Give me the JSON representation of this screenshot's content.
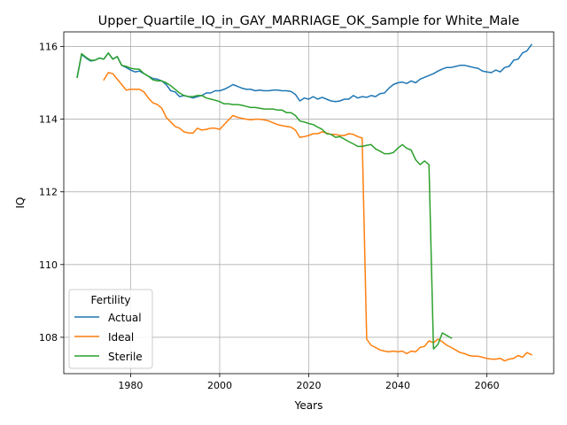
{
  "chart_data": {
    "type": "line",
    "title": "Upper_Quartile_IQ_in_GAY_MARRIAGE_OK_Sample for White_Male",
    "xlabel": "Years",
    "ylabel": "IQ",
    "xlim": [
      1965,
      2075
    ],
    "ylim": [
      107.0,
      116.4
    ],
    "xticks": [
      1980,
      2000,
      2020,
      2040,
      2060
    ],
    "yticks": [
      108,
      110,
      112,
      114,
      116
    ],
    "grid": true,
    "legend": {
      "title": "Fertility",
      "placement": "lower-left"
    },
    "series": [
      {
        "name": "Actual",
        "color": "#1f77b4",
        "points": [
          [
            1968,
            115.15
          ],
          [
            1969,
            115.78
          ],
          [
            1970,
            115.68
          ],
          [
            1971,
            115.6
          ],
          [
            1972,
            115.62
          ],
          [
            1973,
            115.68
          ],
          [
            1974,
            115.65
          ],
          [
            1975,
            115.82
          ],
          [
            1976,
            115.65
          ],
          [
            1977,
            115.72
          ],
          [
            1978,
            115.48
          ],
          [
            1979,
            115.42
          ],
          [
            1980,
            115.35
          ],
          [
            1981,
            115.3
          ],
          [
            1982,
            115.32
          ],
          [
            1983,
            115.25
          ],
          [
            1984,
            115.18
          ],
          [
            1985,
            115.12
          ],
          [
            1986,
            115.1
          ],
          [
            1987,
            115.05
          ],
          [
            1988,
            114.95
          ],
          [
            1989,
            114.78
          ],
          [
            1990,
            114.75
          ],
          [
            1991,
            114.62
          ],
          [
            1992,
            114.65
          ],
          [
            1993,
            114.62
          ],
          [
            1994,
            114.58
          ],
          [
            1995,
            114.62
          ],
          [
            1996,
            114.65
          ],
          [
            1997,
            114.72
          ],
          [
            1998,
            114.72
          ],
          [
            1999,
            114.78
          ],
          [
            2000,
            114.78
          ],
          [
            2001,
            114.82
          ],
          [
            2002,
            114.88
          ],
          [
            2003,
            114.95
          ],
          [
            2004,
            114.9
          ],
          [
            2005,
            114.85
          ],
          [
            2006,
            114.82
          ],
          [
            2007,
            114.82
          ],
          [
            2008,
            114.78
          ],
          [
            2009,
            114.8
          ],
          [
            2010,
            114.78
          ],
          [
            2011,
            114.78
          ],
          [
            2012,
            114.8
          ],
          [
            2013,
            114.8
          ],
          [
            2014,
            114.78
          ],
          [
            2015,
            114.78
          ],
          [
            2016,
            114.76
          ],
          [
            2017,
            114.68
          ],
          [
            2018,
            114.5
          ],
          [
            2019,
            114.58
          ],
          [
            2020,
            114.55
          ],
          [
            2021,
            114.62
          ],
          [
            2022,
            114.55
          ],
          [
            2023,
            114.6
          ],
          [
            2024,
            114.55
          ],
          [
            2025,
            114.5
          ],
          [
            2026,
            114.48
          ],
          [
            2027,
            114.5
          ],
          [
            2028,
            114.55
          ],
          [
            2029,
            114.55
          ],
          [
            2030,
            114.65
          ],
          [
            2031,
            114.58
          ],
          [
            2032,
            114.62
          ],
          [
            2033,
            114.6
          ],
          [
            2034,
            114.65
          ],
          [
            2035,
            114.62
          ],
          [
            2036,
            114.7
          ],
          [
            2037,
            114.72
          ],
          [
            2038,
            114.85
          ],
          [
            2039,
            114.95
          ],
          [
            2040,
            115.0
          ],
          [
            2041,
            115.02
          ],
          [
            2042,
            114.98
          ],
          [
            2043,
            115.05
          ],
          [
            2044,
            115.0
          ],
          [
            2045,
            115.1
          ],
          [
            2046,
            115.15
          ],
          [
            2047,
            115.2
          ],
          [
            2048,
            115.25
          ],
          [
            2049,
            115.32
          ],
          [
            2050,
            115.38
          ],
          [
            2051,
            115.42
          ],
          [
            2052,
            115.42
          ],
          [
            2053,
            115.45
          ],
          [
            2054,
            115.48
          ],
          [
            2055,
            115.48
          ],
          [
            2056,
            115.45
          ],
          [
            2057,
            115.42
          ],
          [
            2058,
            115.4
          ],
          [
            2059,
            115.32
          ],
          [
            2060,
            115.3
          ],
          [
            2061,
            115.28
          ],
          [
            2062,
            115.35
          ],
          [
            2063,
            115.3
          ],
          [
            2064,
            115.42
          ],
          [
            2065,
            115.45
          ],
          [
            2066,
            115.62
          ],
          [
            2067,
            115.65
          ],
          [
            2068,
            115.82
          ],
          [
            2069,
            115.88
          ],
          [
            2070,
            116.05
          ]
        ]
      },
      {
        "name": "Ideal",
        "color": "#ff7f0e",
        "points": [
          [
            1974,
            115.08
          ],
          [
            1975,
            115.28
          ],
          [
            1976,
            115.25
          ],
          [
            1977,
            115.1
          ],
          [
            1978,
            114.95
          ],
          [
            1979,
            114.8
          ],
          [
            1980,
            114.82
          ],
          [
            1981,
            114.82
          ],
          [
            1982,
            114.82
          ],
          [
            1983,
            114.75
          ],
          [
            1984,
            114.58
          ],
          [
            1985,
            114.45
          ],
          [
            1986,
            114.4
          ],
          [
            1987,
            114.3
          ],
          [
            1988,
            114.05
          ],
          [
            1989,
            113.92
          ],
          [
            1990,
            113.8
          ],
          [
            1991,
            113.75
          ],
          [
            1992,
            113.65
          ],
          [
            1993,
            113.62
          ],
          [
            1994,
            113.62
          ],
          [
            1995,
            113.75
          ],
          [
            1996,
            113.7
          ],
          [
            1997,
            113.72
          ],
          [
            1998,
            113.75
          ],
          [
            1999,
            113.75
          ],
          [
            2000,
            113.72
          ],
          [
            2001,
            113.85
          ],
          [
            2002,
            113.98
          ],
          [
            2003,
            114.1
          ],
          [
            2004,
            114.05
          ],
          [
            2005,
            114.02
          ],
          [
            2006,
            114.0
          ],
          [
            2007,
            113.98
          ],
          [
            2008,
            114.0
          ],
          [
            2009,
            114.0
          ],
          [
            2010,
            113.98
          ],
          [
            2011,
            113.95
          ],
          [
            2012,
            113.9
          ],
          [
            2013,
            113.85
          ],
          [
            2014,
            113.82
          ],
          [
            2015,
            113.8
          ],
          [
            2016,
            113.78
          ],
          [
            2017,
            113.7
          ],
          [
            2018,
            113.5
          ],
          [
            2019,
            113.52
          ],
          [
            2020,
            113.55
          ],
          [
            2021,
            113.6
          ],
          [
            2022,
            113.6
          ],
          [
            2023,
            113.65
          ],
          [
            2024,
            113.62
          ],
          [
            2025,
            113.58
          ],
          [
            2026,
            113.58
          ],
          [
            2027,
            113.55
          ],
          [
            2028,
            113.55
          ],
          [
            2029,
            113.6
          ],
          [
            2030,
            113.58
          ],
          [
            2031,
            113.52
          ],
          [
            2032,
            113.48
          ],
          [
            2033,
            107.95
          ],
          [
            2034,
            107.78
          ],
          [
            2035,
            107.72
          ],
          [
            2036,
            107.65
          ],
          [
            2037,
            107.62
          ],
          [
            2038,
            107.6
          ],
          [
            2039,
            107.62
          ],
          [
            2040,
            107.6
          ],
          [
            2041,
            107.62
          ],
          [
            2042,
            107.55
          ],
          [
            2043,
            107.62
          ],
          [
            2044,
            107.6
          ],
          [
            2045,
            107.72
          ],
          [
            2046,
            107.75
          ],
          [
            2047,
            107.9
          ],
          [
            2048,
            107.85
          ],
          [
            2049,
            107.95
          ],
          [
            2050,
            107.88
          ],
          [
            2051,
            107.78
          ],
          [
            2052,
            107.72
          ],
          [
            2053,
            107.65
          ],
          [
            2054,
            107.58
          ],
          [
            2055,
            107.55
          ],
          [
            2056,
            107.5
          ],
          [
            2057,
            107.48
          ],
          [
            2058,
            107.48
          ],
          [
            2059,
            107.45
          ],
          [
            2060,
            107.42
          ],
          [
            2061,
            107.4
          ],
          [
            2062,
            107.4
          ],
          [
            2063,
            107.42
          ],
          [
            2064,
            107.35
          ],
          [
            2065,
            107.4
          ],
          [
            2066,
            107.42
          ],
          [
            2067,
            107.5
          ],
          [
            2068,
            107.45
          ],
          [
            2069,
            107.58
          ],
          [
            2070,
            107.52
          ]
        ]
      },
      {
        "name": "Sterile",
        "color": "#2ca02c",
        "points": [
          [
            1968,
            115.15
          ],
          [
            1969,
            115.8
          ],
          [
            1970,
            115.7
          ],
          [
            1971,
            115.62
          ],
          [
            1972,
            115.62
          ],
          [
            1973,
            115.68
          ],
          [
            1974,
            115.65
          ],
          [
            1975,
            115.82
          ],
          [
            1976,
            115.65
          ],
          [
            1977,
            115.72
          ],
          [
            1978,
            115.48
          ],
          [
            1979,
            115.45
          ],
          [
            1980,
            115.4
          ],
          [
            1981,
            115.38
          ],
          [
            1982,
            115.37
          ],
          [
            1983,
            115.25
          ],
          [
            1984,
            115.18
          ],
          [
            1985,
            115.08
          ],
          [
            1986,
            115.05
          ],
          [
            1987,
            115.05
          ],
          [
            1988,
            115.0
          ],
          [
            1989,
            114.92
          ],
          [
            1990,
            114.82
          ],
          [
            1991,
            114.72
          ],
          [
            1992,
            114.65
          ],
          [
            1993,
            114.62
          ],
          [
            1994,
            114.62
          ],
          [
            1995,
            114.65
          ],
          [
            1996,
            114.65
          ],
          [
            1997,
            114.58
          ],
          [
            1998,
            114.55
          ],
          [
            1999,
            114.52
          ],
          [
            2000,
            114.48
          ],
          [
            2001,
            114.42
          ],
          [
            2002,
            114.42
          ],
          [
            2003,
            114.4
          ],
          [
            2004,
            114.4
          ],
          [
            2005,
            114.38
          ],
          [
            2006,
            114.35
          ],
          [
            2007,
            114.32
          ],
          [
            2008,
            114.32
          ],
          [
            2009,
            114.3
          ],
          [
            2010,
            114.28
          ],
          [
            2011,
            114.28
          ],
          [
            2012,
            114.28
          ],
          [
            2013,
            114.25
          ],
          [
            2014,
            114.25
          ],
          [
            2015,
            114.18
          ],
          [
            2016,
            114.18
          ],
          [
            2017,
            114.1
          ],
          [
            2018,
            113.95
          ],
          [
            2019,
            113.92
          ],
          [
            2020,
            113.88
          ],
          [
            2021,
            113.85
          ],
          [
            2022,
            113.78
          ],
          [
            2023,
            113.72
          ],
          [
            2024,
            113.6
          ],
          [
            2025,
            113.58
          ],
          [
            2026,
            113.5
          ],
          [
            2027,
            113.52
          ],
          [
            2028,
            113.45
          ],
          [
            2029,
            113.38
          ],
          [
            2030,
            113.32
          ],
          [
            2031,
            113.25
          ],
          [
            2032,
            113.25
          ],
          [
            2033,
            113.28
          ],
          [
            2034,
            113.3
          ],
          [
            2035,
            113.18
          ],
          [
            2036,
            113.12
          ],
          [
            2037,
            113.05
          ],
          [
            2038,
            113.05
          ],
          [
            2039,
            113.08
          ],
          [
            2040,
            113.2
          ],
          [
            2041,
            113.3
          ],
          [
            2042,
            113.2
          ],
          [
            2043,
            113.15
          ],
          [
            2044,
            112.88
          ],
          [
            2045,
            112.75
          ],
          [
            2046,
            112.85
          ],
          [
            2047,
            112.75
          ],
          [
            2048,
            107.68
          ],
          [
            2049,
            107.8
          ],
          [
            2050,
            108.12
          ],
          [
            2051,
            108.05
          ],
          [
            2052,
            107.98
          ]
        ]
      }
    ]
  }
}
